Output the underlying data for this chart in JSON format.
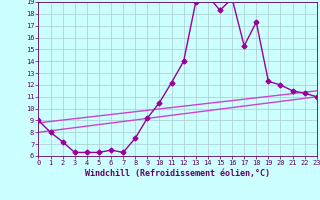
{
  "xlabel": "Windchill (Refroidissement éolien,°C)",
  "line1": {
    "x": [
      0,
      1,
      2,
      3,
      4,
      5,
      6,
      7,
      8,
      9,
      10,
      11,
      12,
      13,
      14,
      15,
      16,
      17,
      18,
      19,
      20,
      21,
      22,
      23
    ],
    "y": [
      9.0,
      8.0,
      7.2,
      6.3,
      6.3,
      6.3,
      6.5,
      6.3,
      7.5,
      9.2,
      10.5,
      12.2,
      14.0,
      19.0,
      19.5,
      18.3,
      19.3,
      15.3,
      17.3,
      12.3,
      12.0,
      11.5,
      11.3,
      11.0
    ],
    "color": "#990099",
    "marker": "D",
    "markersize": 2.5,
    "linewidth": 1.0
  },
  "line2": {
    "x": [
      0,
      23
    ],
    "y": [
      8.8,
      11.5
    ],
    "color": "#cc44cc",
    "linewidth": 1.0
  },
  "line3": {
    "x": [
      0,
      23
    ],
    "y": [
      8.0,
      11.0
    ],
    "color": "#cc44cc",
    "linewidth": 1.0
  },
  "bg_color": "#ccffff",
  "grid_color": "#aacccc",
  "axis_color": "#660066",
  "text_color": "#660066",
  "xlim": [
    0,
    23
  ],
  "ylim": [
    6,
    19
  ],
  "yticks": [
    6,
    7,
    8,
    9,
    10,
    11,
    12,
    13,
    14,
    15,
    16,
    17,
    18,
    19
  ],
  "xticks": [
    0,
    1,
    2,
    3,
    4,
    5,
    6,
    7,
    8,
    9,
    10,
    11,
    12,
    13,
    14,
    15,
    16,
    17,
    18,
    19,
    20,
    21,
    22,
    23
  ],
  "tick_fontsize": 5.0,
  "label_fontsize": 6.0
}
